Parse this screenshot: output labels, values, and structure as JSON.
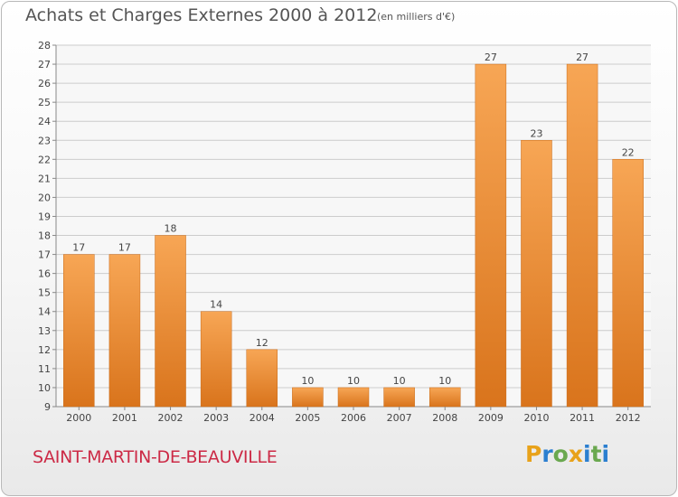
{
  "header": {
    "title": "Achats et Charges Externes 2000 à 2012",
    "subtitle": "(en milliers d'€)"
  },
  "footer": {
    "place": "SAINT-MARTIN-DE-BEAUVILLE",
    "logo": {
      "letters": [
        "P",
        "r",
        "o",
        "x",
        "i",
        "t",
        "i"
      ],
      "colors": [
        "#e8a21a",
        "#2b7fd0",
        "#6aa84f",
        "#e8a21a",
        "#2b7fd0",
        "#6aa84f",
        "#2b7fd0"
      ]
    }
  },
  "chart_data": {
    "type": "bar",
    "categories": [
      "2000",
      "2001",
      "2002",
      "2003",
      "2004",
      "2005",
      "2006",
      "2007",
      "2008",
      "2009",
      "2010",
      "2011",
      "2012"
    ],
    "values": [
      17,
      17,
      18,
      14,
      12,
      10,
      10,
      10,
      10,
      27,
      23,
      27,
      22
    ],
    "ylim": [
      9,
      28
    ],
    "yticks": [
      9,
      10,
      11,
      12,
      13,
      14,
      15,
      16,
      17,
      18,
      19,
      20,
      21,
      22,
      23,
      24,
      25,
      26,
      27,
      28
    ],
    "grid": true,
    "colors": {
      "bar_light": "#f7a655",
      "bar_dark": "#d9741c",
      "grid": "#cccccc",
      "axis": "#888888"
    }
  }
}
